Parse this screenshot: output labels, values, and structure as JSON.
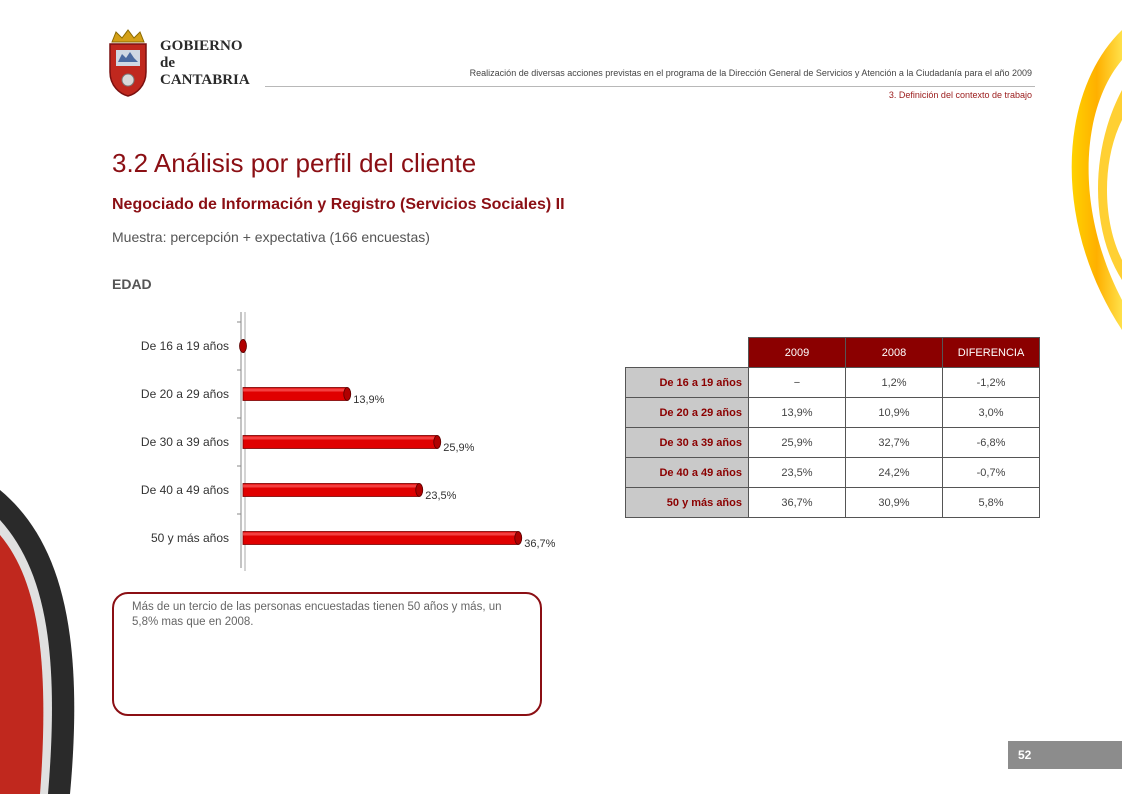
{
  "logo": {
    "line1": "GOBIERNO",
    "line2": "de",
    "line3": "CANTABRIA"
  },
  "header": {
    "title": "Realización de diversas acciones previstas en el programa de la Dirección General de Servicios y Atención a la Ciudadanía para el año 2009",
    "section": "3. Definición del contexto de trabajo"
  },
  "page": {
    "title": "3.2 Análisis por perfil del cliente",
    "subtitle": "Negociado de Información y Registro (Servicios Sociales) II",
    "sample": "Muestra: percepción + expectativa (166 encuestas)",
    "chart_label": "EDAD",
    "number": "52"
  },
  "chart_data": {
    "type": "bar",
    "orientation": "horizontal",
    "categories": [
      "De 16 a 19 años",
      "De 20 a 29 años",
      "De 30 a 39 años",
      "De 40 a 49 años",
      "50 y más años"
    ],
    "values": [
      0,
      13.9,
      25.9,
      23.5,
      36.7
    ],
    "data_labels": [
      "",
      "13,9%",
      "25,9%",
      "23,5%",
      "36,7%"
    ],
    "xlim": [
      0,
      40
    ],
    "bar_color": "#e00000",
    "grid": false,
    "legend": "none"
  },
  "table": {
    "headers": [
      "2009",
      "2008",
      "DIFERENCIA"
    ],
    "rows": [
      {
        "label": "De 16 a 19 años",
        "values": [
          "−",
          "1,2%",
          "-1,2%"
        ]
      },
      {
        "label": "De 20 a 29 años",
        "values": [
          "13,9%",
          "10,9%",
          "3,0%"
        ]
      },
      {
        "label": "De 30 a 39 años",
        "values": [
          "25,9%",
          "32,7%",
          "-6,8%"
        ]
      },
      {
        "label": "De 40 a 49 años",
        "values": [
          "23,5%",
          "24,2%",
          "-0,7%"
        ]
      },
      {
        "label": "50 y más años",
        "values": [
          "36,7%",
          "30,9%",
          "5,8%"
        ]
      }
    ]
  },
  "note": "Más de un tercio de las personas encuestadas tienen 50 años y más, un 5,8% mas que en 2008.",
  "colors": {
    "brand": "#8b0f14",
    "header_fill": "#8b0000",
    "row_fill": "#c9c9c9",
    "page_box": "#8c8c8c"
  }
}
